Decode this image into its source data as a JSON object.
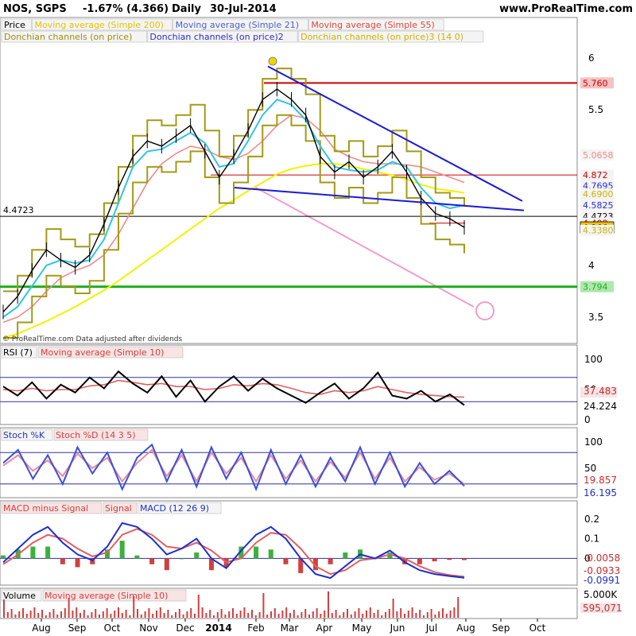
{
  "header": {
    "symbol": "NOS, SGPS",
    "change": "-1.67% (4.366)",
    "period": "Daily",
    "date": "30-Jul-2014",
    "site": "www.ProRealTime.com"
  },
  "legend_row1": [
    {
      "text": "Price",
      "color": "#000000"
    },
    {
      "text": "Moving average (Simple 200)",
      "color": "#e6c200"
    },
    {
      "text": "Moving average (Simple 21)",
      "color": "#4a5fd0"
    },
    {
      "text": "Moving average (Simple 55)",
      "color": "#e0473a"
    }
  ],
  "legend_row2": [
    {
      "text": "Donchian channels (on price)",
      "color": "#9b8f12"
    },
    {
      "text": "Donchian channels (on price)2",
      "color": "#2b2bd0"
    },
    {
      "text": "Donchian channels (on price)3 (14 0)",
      "color": "#c9b400"
    }
  ],
  "watermark": "© ProRealTime.com Data adjusted after dividends",
  "colors": {
    "price": "#000000",
    "ma200": "#f2f200",
    "ma21": "#2ec4e8",
    "ma55": "#f08a8a",
    "donchian": "#a39a16",
    "trendline": "#1a1ad8",
    "projection": "#f09ccc",
    "support": "#1db01d",
    "resistance": "#cc0000",
    "rsi": "#000000",
    "stoch_k": "#3a4fd8",
    "stoch_d": "#e88a9c",
    "macd": "#1a2fd0",
    "signal": "#e06060",
    "volume": "#d04040"
  },
  "chart_data": [
    {
      "type": "line",
      "panel": "price",
      "x_labels": [
        "Aug",
        "Sep",
        "Oct",
        "Nov",
        "Dec",
        "2014",
        "Feb",
        "Mar",
        "Apr",
        "May",
        "Jun",
        "Jul",
        "Aug",
        "Sep",
        "Oct"
      ],
      "ylim": [
        3.3,
        6.1
      ],
      "y_ticks": [
        "6",
        "5.5",
        "4",
        "3.5"
      ],
      "series": [
        {
          "values": [
            3.55,
            3.7,
            3.95,
            4.15,
            4.05,
            3.98,
            4.1,
            4.4,
            4.75,
            5.05,
            5.2,
            5.15,
            5.25,
            5.35,
            5.1,
            4.85,
            5.05,
            5.3,
            5.6,
            5.7,
            5.6,
            5.45,
            5.05,
            4.9,
            5.0,
            4.85,
            4.95,
            5.1,
            4.9,
            4.65,
            4.5,
            4.45,
            4.366
          ]
        },
        {
          "name": "Moving average (Simple 21)",
          "values": [
            3.5,
            3.6,
            3.8,
            4.0,
            4.05,
            4.02,
            4.05,
            4.25,
            4.6,
            4.95,
            5.1,
            5.12,
            5.2,
            5.28,
            5.18,
            4.95,
            4.98,
            5.2,
            5.45,
            5.6,
            5.55,
            5.4,
            5.15,
            4.95,
            4.92,
            4.9,
            4.92,
            5.0,
            4.95,
            4.75,
            4.6,
            4.55,
            4.58
          ]
        },
        {
          "name": "Moving average (Simple 55)",
          "values": [
            3.45,
            3.5,
            3.6,
            3.75,
            3.88,
            3.95,
            4.0,
            4.1,
            4.3,
            4.55,
            4.8,
            4.98,
            5.08,
            5.15,
            5.12,
            5.05,
            5.02,
            5.08,
            5.2,
            5.35,
            5.45,
            5.42,
            5.3,
            5.12,
            5.05,
            5.0,
            4.98,
            4.98,
            4.97,
            4.95,
            4.9,
            4.85,
            4.8
          ]
        },
        {
          "name": "Moving average (Simple 200)",
          "values": [
            3.3,
            3.34,
            3.4,
            3.46,
            3.53,
            3.6,
            3.68,
            3.76,
            3.85,
            3.95,
            4.05,
            4.15,
            4.25,
            4.35,
            4.45,
            4.55,
            4.63,
            4.72,
            4.8,
            4.88,
            4.93,
            4.96,
            4.98,
            4.98,
            4.96,
            4.93,
            4.9,
            4.87,
            4.83,
            4.78,
            4.74,
            4.72,
            4.7
          ]
        }
      ],
      "levels": [
        {
          "label": "5.760",
          "value": 5.76,
          "color": "#cc0000"
        },
        {
          "label": "5.0658",
          "value": 5.0658,
          "color": "#f08a8a"
        },
        {
          "label": "4.872",
          "value": 4.872,
          "color": "#cc0000"
        },
        {
          "label": "4.7695",
          "value": 4.7695,
          "color": "#2b2bd0"
        },
        {
          "label": "4.6900",
          "value": 4.69,
          "color": "#c9b400"
        },
        {
          "label": "4.5825",
          "value": 4.5825,
          "color": "#2b2bd0"
        },
        {
          "label": "4.4723",
          "value": 4.4723,
          "color": "#000000"
        },
        {
          "label": "4.408",
          "value": 4.408,
          "color": "#cc0000"
        },
        {
          "label": "4.366",
          "value": 4.366,
          "color": "#000000"
        },
        {
          "label": "4.3380",
          "value": 4.338,
          "color": "#c9b400"
        },
        {
          "label": "3.794",
          "value": 3.794,
          "color": "#1db01d"
        }
      ],
      "left_label": "4.4723"
    },
    {
      "type": "line",
      "panel": "rsi",
      "title": "RSI (7)",
      "ma_label": "Moving average (Simple 10)",
      "ylim": [
        0,
        100
      ],
      "y_ticks": [
        "100",
        "50",
        "0"
      ],
      "bands": [
        70,
        30
      ],
      "series": [
        {
          "name": "RSI (7)",
          "values": [
            55,
            40,
            62,
            35,
            58,
            45,
            70,
            52,
            80,
            60,
            45,
            72,
            38,
            65,
            30,
            55,
            72,
            48,
            68,
            52,
            40,
            28,
            45,
            60,
            35,
            52,
            78,
            40,
            35,
            48,
            30,
            42,
            24.224
          ]
        },
        {
          "name": "Moving average (Simple 10)",
          "values": [
            50,
            48,
            52,
            48,
            50,
            50,
            56,
            58,
            65,
            62,
            58,
            60,
            55,
            55,
            50,
            52,
            58,
            56,
            60,
            58,
            52,
            45,
            42,
            48,
            45,
            48,
            55,
            50,
            45,
            42,
            40,
            38,
            37.483
          ]
        }
      ],
      "values_labels": [
        "37.483",
        "24.224"
      ]
    },
    {
      "type": "line",
      "panel": "stochastic",
      "title": "Stoch %K",
      "d_label": "Stoch %D (14 3 5)",
      "ylim": [
        0,
        100
      ],
      "y_ticks": [
        "100",
        "50"
      ],
      "bands": [
        80,
        20
      ],
      "series": [
        {
          "name": "Stoch %K",
          "values": [
            60,
            85,
            30,
            75,
            20,
            90,
            40,
            80,
            10,
            70,
            95,
            25,
            85,
            15,
            90,
            30,
            80,
            10,
            85,
            20,
            75,
            15,
            70,
            25,
            90,
            20,
            80,
            15,
            60,
            20,
            45,
            16.195
          ]
        },
        {
          "name": "Stoch %D (14 3 5)",
          "values": [
            55,
            75,
            45,
            65,
            35,
            78,
            50,
            70,
            25,
            60,
            85,
            35,
            75,
            25,
            80,
            40,
            70,
            25,
            75,
            30,
            65,
            25,
            62,
            32,
            80,
            30,
            70,
            25,
            52,
            28,
            40,
            19.857
          ]
        }
      ],
      "values_labels": [
        "19.857",
        "16.195"
      ]
    },
    {
      "type": "line",
      "panel": "macd",
      "title": "MACD minus Signal",
      "signal_label": "Signal",
      "macd_label": "MACD (12 26 9)",
      "ylim": [
        -0.12,
        0.22
      ],
      "y_ticks": [
        "0.2",
        "0.1",
        "0"
      ],
      "series": [
        {
          "name": "MACD (12 26 9)",
          "values": [
            -0.02,
            0.05,
            0.12,
            0.16,
            0.08,
            0.02,
            -0.01,
            0.06,
            0.18,
            0.16,
            0.1,
            0.02,
            0.05,
            0.1,
            0.0,
            -0.05,
            0.04,
            0.12,
            0.16,
            0.1,
            0.0,
            -0.08,
            -0.1,
            -0.04,
            0.02,
            0.0,
            0.04,
            -0.02,
            -0.06,
            -0.08,
            -0.09,
            -0.0991
          ]
        },
        {
          "name": "Signal",
          "values": [
            -0.03,
            0.02,
            0.08,
            0.12,
            0.1,
            0.05,
            0.01,
            0.03,
            0.12,
            0.15,
            0.12,
            0.06,
            0.05,
            0.08,
            0.04,
            -0.02,
            0.0,
            0.08,
            0.13,
            0.12,
            0.05,
            -0.04,
            -0.08,
            -0.06,
            -0.01,
            0.0,
            0.02,
            0.0,
            -0.04,
            -0.07,
            -0.085,
            -0.0933
          ]
        }
      ],
      "values_labels": [
        "-0.0058",
        "-0.0933",
        "-0.0991"
      ]
    },
    {
      "type": "bar",
      "panel": "volume",
      "title": "Volume",
      "ma_label": "Moving average (Simple 10)",
      "y_ticks": [
        "5.000K"
      ],
      "values_labels": [
        "595,071"
      ]
    }
  ]
}
